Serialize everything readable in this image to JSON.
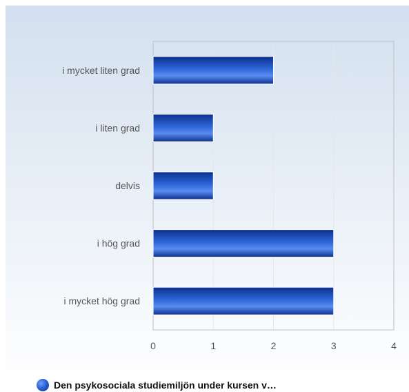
{
  "chart_data": {
    "type": "bar",
    "orientation": "horizontal",
    "categories": [
      "i mycket liten grad",
      "i liten grad",
      "delvis",
      "i hög grad",
      "i mycket hög grad"
    ],
    "series": [
      {
        "name": "Den psykosociala studiemiljön under kursen v…",
        "values": [
          2,
          1,
          1,
          3,
          3
        ]
      }
    ],
    "xticks": [
      "0",
      "1",
      "2",
      "3",
      "4"
    ],
    "xlim": [
      0,
      4
    ],
    "grid": true,
    "legend_position": "bottom-left",
    "colors": {
      "bar_dark": "#0b2f8c",
      "bar_mid": "#2e66d8",
      "bar_light": "#5a8cf0",
      "background_top": "#d3e0ef",
      "background_bottom": "#ffffff",
      "grid": "#e6e6e6",
      "axis_frame": "#bfbfbf"
    }
  }
}
